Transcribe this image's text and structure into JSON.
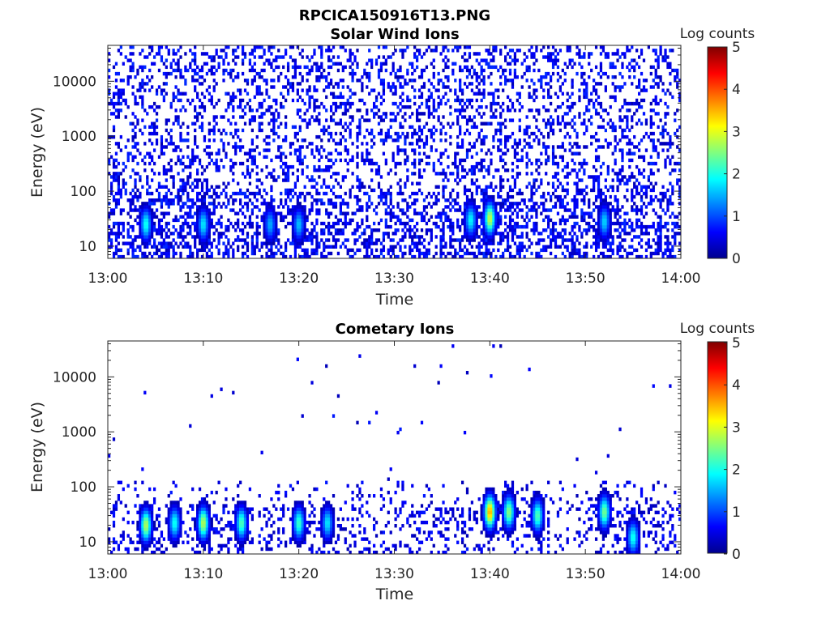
{
  "figure_title": "RPCICA150916T13.PNG",
  "chart_data": [
    {
      "type": "heatmap",
      "title": "Solar Wind Ions",
      "xlabel": "Time",
      "ylabel": "Energy (eV)",
      "x_ticks": [
        "13:00",
        "13:10",
        "13:20",
        "13:30",
        "13:40",
        "13:50",
        "14:00"
      ],
      "xlim": [
        "13:00",
        "14:00"
      ],
      "y_scale": "log",
      "y_ticks": [
        10,
        100,
        1000,
        10000
      ],
      "y_tick_labels": [
        "10",
        "100",
        "1000",
        "10000"
      ],
      "ylim": [
        6,
        45000
      ],
      "colorbar": {
        "label": "Log counts",
        "range": [
          0,
          5
        ],
        "ticks": [
          "0",
          "1",
          "2",
          "3",
          "4",
          "5"
        ],
        "colormap": "jet"
      },
      "hotspots": [
        {
          "time": "13:04",
          "energy_eV": 25,
          "log_counts": 2.0
        },
        {
          "time": "13:10",
          "energy_eV": 25,
          "log_counts": 1.8
        },
        {
          "time": "13:17",
          "energy_eV": 25,
          "log_counts": 1.5
        },
        {
          "time": "13:20",
          "energy_eV": 25,
          "log_counts": 1.6
        },
        {
          "time": "13:38",
          "energy_eV": 30,
          "log_counts": 1.9
        },
        {
          "time": "13:40",
          "energy_eV": 32,
          "log_counts": 2.9
        },
        {
          "time": "13:52",
          "energy_eV": 28,
          "log_counts": 1.7
        }
      ]
    },
    {
      "type": "heatmap",
      "title": "Cometary Ions",
      "xlabel": "Time",
      "ylabel": "Energy (eV)",
      "x_ticks": [
        "13:00",
        "13:10",
        "13:20",
        "13:30",
        "13:40",
        "13:50",
        "14:00"
      ],
      "xlim": [
        "13:00",
        "14:00"
      ],
      "y_scale": "log",
      "y_ticks": [
        10,
        100,
        1000,
        10000
      ],
      "y_tick_labels": [
        "10",
        "100",
        "1000",
        "10000"
      ],
      "ylim": [
        6,
        45000
      ],
      "colorbar": {
        "label": "Log counts",
        "range": [
          0,
          5
        ],
        "ticks": [
          "0",
          "1",
          "2",
          "3",
          "4",
          "5"
        ],
        "colormap": "jet"
      },
      "hotspots": [
        {
          "time": "13:04",
          "energy_eV": 20,
          "log_counts": 2.8
        },
        {
          "time": "13:07",
          "energy_eV": 22,
          "log_counts": 2.0
        },
        {
          "time": "13:10",
          "energy_eV": 22,
          "log_counts": 2.8
        },
        {
          "time": "13:14",
          "energy_eV": 22,
          "log_counts": 2.3
        },
        {
          "time": "13:20",
          "energy_eV": 22,
          "log_counts": 2.2
        },
        {
          "time": "13:23",
          "energy_eV": 22,
          "log_counts": 1.8
        },
        {
          "time": "13:40",
          "energy_eV": 35,
          "log_counts": 3.6
        },
        {
          "time": "13:42",
          "energy_eV": 35,
          "log_counts": 2.6
        },
        {
          "time": "13:45",
          "energy_eV": 30,
          "log_counts": 2.3
        },
        {
          "time": "13:52",
          "energy_eV": 35,
          "log_counts": 2.5
        },
        {
          "time": "13:55",
          "energy_eV": 12,
          "log_counts": 2.0
        }
      ]
    }
  ]
}
